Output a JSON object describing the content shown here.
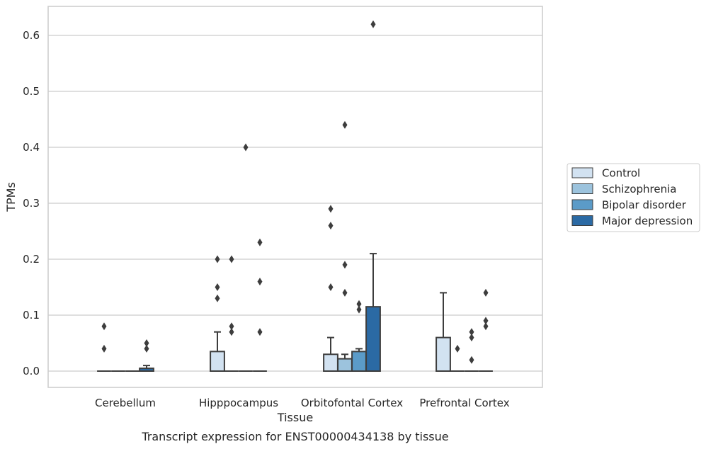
{
  "chart_data": {
    "type": "box",
    "xlabel": "Tissue",
    "ylabel": "TPMs",
    "caption": "Transcript expression for ENST00000434138 by tissue",
    "ylim": [
      -0.03,
      0.655
    ],
    "yticks": [
      0.0,
      0.1,
      0.2,
      0.3,
      0.4,
      0.5,
      0.6
    ],
    "ytick_labels": [
      "0.0",
      "0.1",
      "0.2",
      "0.3",
      "0.4",
      "0.5",
      "0.6"
    ],
    "grid": "horizontal",
    "legend_position": "right",
    "categories": [
      "Cerebellum",
      "Hipppocampus",
      "Orbitofontal Cortex",
      "Prefrontal Cortex"
    ],
    "series": [
      {
        "name": "Control",
        "color": "#d2e2f1",
        "boxes": [
          {
            "q1": 0,
            "median": 0,
            "q3": 0,
            "whisker_low": 0,
            "whisker_high": 0,
            "outliers": [
              0.08,
              0.04
            ]
          },
          {
            "q1": 0,
            "median": 0,
            "q3": 0.035,
            "whisker_low": 0,
            "whisker_high": 0.07,
            "outliers": [
              0.2,
              0.15,
              0.13
            ]
          },
          {
            "q1": 0,
            "median": 0,
            "q3": 0.03,
            "whisker_low": 0,
            "whisker_high": 0.06,
            "outliers": [
              0.29,
              0.26,
              0.15
            ]
          },
          {
            "q1": 0,
            "median": 0,
            "q3": 0.06,
            "whisker_low": 0,
            "whisker_high": 0.14,
            "outliers": []
          }
        ]
      },
      {
        "name": "Schizophrenia",
        "color": "#9cc3dd",
        "boxes": [
          {
            "q1": 0,
            "median": 0,
            "q3": 0,
            "whisker_low": 0,
            "whisker_high": 0,
            "outliers": []
          },
          {
            "q1": 0,
            "median": 0,
            "q3": 0,
            "whisker_low": 0,
            "whisker_high": 0,
            "outliers": [
              0.2,
              0.08,
              0.07
            ]
          },
          {
            "q1": 0,
            "median": 0,
            "q3": 0.022,
            "whisker_low": 0,
            "whisker_high": 0.03,
            "outliers": [
              0.44,
              0.19,
              0.14
            ]
          },
          {
            "q1": 0,
            "median": 0,
            "q3": 0,
            "whisker_low": 0,
            "whisker_high": 0,
            "outliers": [
              0.04
            ]
          }
        ]
      },
      {
        "name": "Bipolar disorder",
        "color": "#5b9bc8",
        "boxes": [
          {
            "q1": 0,
            "median": 0,
            "q3": 0,
            "whisker_low": 0,
            "whisker_high": 0,
            "outliers": []
          },
          {
            "q1": 0,
            "median": 0,
            "q3": 0,
            "whisker_low": 0,
            "whisker_high": 0,
            "outliers": [
              0.4
            ]
          },
          {
            "q1": 0,
            "median": 0,
            "q3": 0.035,
            "whisker_low": 0,
            "whisker_high": 0.04,
            "outliers": [
              0.12,
              0.11
            ]
          },
          {
            "q1": 0,
            "median": 0,
            "q3": 0,
            "whisker_low": 0,
            "whisker_high": 0,
            "outliers": [
              0.07,
              0.06,
              0.02
            ]
          }
        ]
      },
      {
        "name": "Major depression",
        "color": "#2b6aa4",
        "boxes": [
          {
            "q1": 0,
            "median": 0,
            "q3": 0.005,
            "whisker_low": 0,
            "whisker_high": 0.01,
            "outliers": [
              0.05,
              0.04
            ]
          },
          {
            "q1": 0,
            "median": 0,
            "q3": 0,
            "whisker_low": 0,
            "whisker_high": 0,
            "outliers": [
              0.23,
              0.16,
              0.07
            ]
          },
          {
            "q1": 0,
            "median": 0,
            "q3": 0.115,
            "whisker_low": 0,
            "whisker_high": 0.21,
            "outliers": [
              0.62
            ]
          },
          {
            "q1": 0,
            "median": 0,
            "q3": 0,
            "whisker_low": 0,
            "whisker_high": 0,
            "outliers": [
              0.14,
              0.09,
              0.08
            ]
          }
        ]
      }
    ]
  }
}
